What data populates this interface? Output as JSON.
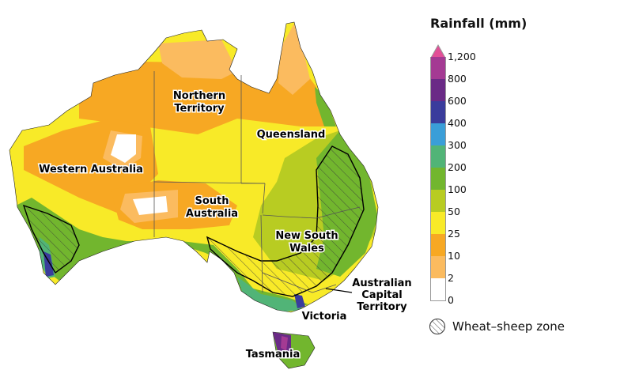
{
  "map": {
    "state_labels": {
      "northern_territory": [
        "Northern",
        "Territory"
      ],
      "queensland": [
        "Queensland"
      ],
      "western_australia": [
        "Western Australia"
      ],
      "south_australia": [
        "South",
        "Australia"
      ],
      "new_south_wales": [
        "New South",
        "Wales"
      ],
      "act": [
        "Australian",
        "Capital",
        "Territory"
      ],
      "victoria": [
        "Victoria"
      ],
      "tasmania": [
        "Tasmania"
      ]
    },
    "colors": {
      "r0_2": "#ffffff",
      "r2_10": "#fbbb5f",
      "r10_25": "#f7a823",
      "r25_50": "#f8ea28",
      "r50_100": "#b8cc22",
      "r100_200": "#72b62e",
      "r200_300": "#51b477",
      "r300_400": "#3a9ed8",
      "r400_600": "#3a3c9c",
      "r600_800": "#6a2a86",
      "r800_1200": "#a43a93",
      "r1200_plus": "#e24f97"
    }
  },
  "legend": {
    "title": "Rainfall (mm)",
    "ticks": [
      "1,200",
      "800",
      "600",
      "400",
      "300",
      "200",
      "100",
      "50",
      "25",
      "10",
      "2",
      "0"
    ],
    "swatches": [
      "#a43a93",
      "#6a2a86",
      "#3a3c9c",
      "#3a9ed8",
      "#51b477",
      "#72b62e",
      "#b8cc22",
      "#f8ea28",
      "#f7a823",
      "#fbbb5f",
      "#ffffff"
    ],
    "overflow_color": "#e24f97",
    "zone_label": "Wheat–sheep zone"
  }
}
